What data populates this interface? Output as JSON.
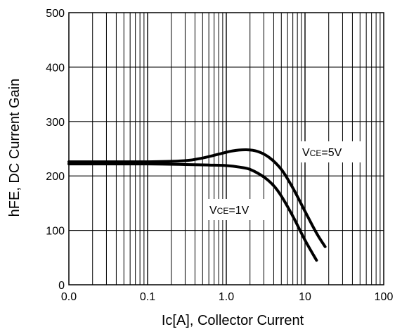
{
  "chart_data": {
    "type": "line",
    "xscale": "log",
    "xlim": [
      0.01,
      100
    ],
    "ylim": [
      0,
      500
    ],
    "xticks": [
      {
        "value": 0.01,
        "label": "0.0"
      },
      {
        "value": 0.1,
        "label": "0.1"
      },
      {
        "value": 1,
        "label": "1.0"
      },
      {
        "value": 10,
        "label": "10"
      },
      {
        "value": 100,
        "label": "100"
      }
    ],
    "yticks": [
      {
        "value": 0,
        "label": "0"
      },
      {
        "value": 100,
        "label": "100"
      },
      {
        "value": 200,
        "label": "200"
      },
      {
        "value": 300,
        "label": "300"
      },
      {
        "value": 400,
        "label": "400"
      },
      {
        "value": 500,
        "label": "500"
      }
    ],
    "grid": true,
    "xlabel": "Ic[A], Collector Current",
    "ylabel": "hFE, DC Current Gain",
    "series": [
      {
        "name_prefix": "V",
        "name_sub": "CE",
        "name_suffix": "=5V",
        "color": "#000000",
        "x": [
          0.01,
          0.1,
          0.3,
          0.5,
          0.8,
          1.2,
          1.8,
          2.5,
          3.5,
          5,
          7,
          10,
          14,
          18
        ],
        "y": [
          226,
          226,
          228,
          233,
          240,
          246,
          248,
          245,
          234,
          212,
          178,
          135,
          95,
          70
        ]
      },
      {
        "name_prefix": "V",
        "name_sub": "CE",
        "name_suffix": "=1V",
        "color": "#000000",
        "x": [
          0.01,
          0.1,
          0.3,
          0.6,
          1,
          1.5,
          2,
          3,
          4,
          5,
          7,
          10,
          14
        ],
        "y": [
          222,
          222,
          221,
          220,
          219,
          216,
          212,
          198,
          182,
          163,
          126,
          82,
          45
        ]
      }
    ],
    "annotations": [
      {
        "series": 0,
        "position": "right-of-curve"
      },
      {
        "series": 1,
        "position": "below-curve"
      }
    ]
  }
}
